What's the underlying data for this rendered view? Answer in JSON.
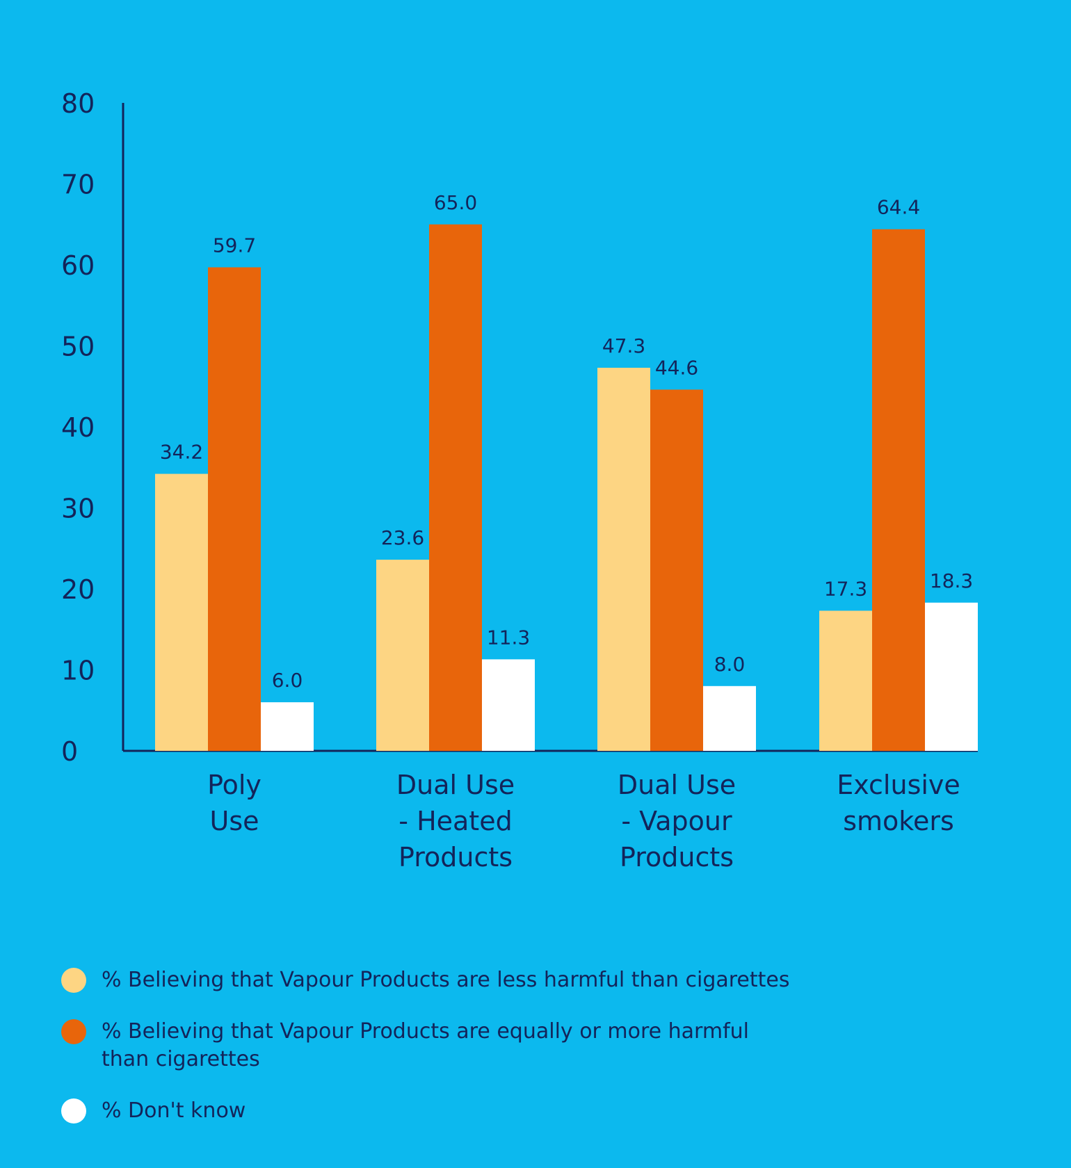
{
  "chart_data": {
    "type": "bar",
    "categories": [
      [
        "Poly",
        "Use"
      ],
      [
        "Dual Use",
        "- Heated",
        "Products"
      ],
      [
        "Dual Use",
        "- Vapour",
        "Products"
      ],
      [
        "Exclusive",
        "smokers"
      ]
    ],
    "series": [
      {
        "name": "% Believing that Vapour Products are less harmful than cigarettes",
        "color": "#fdd583",
        "values": [
          34.2,
          23.6,
          47.3,
          17.3
        ],
        "labels": [
          "34.2",
          "23.6",
          "47.3",
          "17.3"
        ]
      },
      {
        "name": "% Believing that Vapour Products are equally or more harmful than cigarettes",
        "color": "#e8650b",
        "values": [
          59.7,
          65.0,
          44.6,
          64.4
        ],
        "labels": [
          "59.7",
          "65.0",
          "44.6",
          "64.4"
        ]
      },
      {
        "name": "% Don't know",
        "color": "#ffffff",
        "values": [
          6.0,
          11.3,
          8.0,
          18.3
        ],
        "labels": [
          "6.0",
          "11.3",
          "8.0",
          "18.3"
        ]
      }
    ],
    "yticks": [
      "0",
      "10",
      "20",
      "30",
      "40",
      "50",
      "60",
      "70",
      "80"
    ],
    "ylim": [
      0,
      80
    ],
    "grid": false,
    "legend_position": "bottom"
  },
  "legend": {
    "items": [
      {
        "lines": [
          "% Believing that Vapour Products are less harmful than cigarettes"
        ],
        "color": "#fdd583"
      },
      {
        "lines": [
          "% Believing that Vapour Products are equally or more harmful",
          "than cigarettes"
        ],
        "color": "#e8650b"
      },
      {
        "lines": [
          "% Don't know"
        ],
        "color": "#ffffff"
      }
    ]
  }
}
